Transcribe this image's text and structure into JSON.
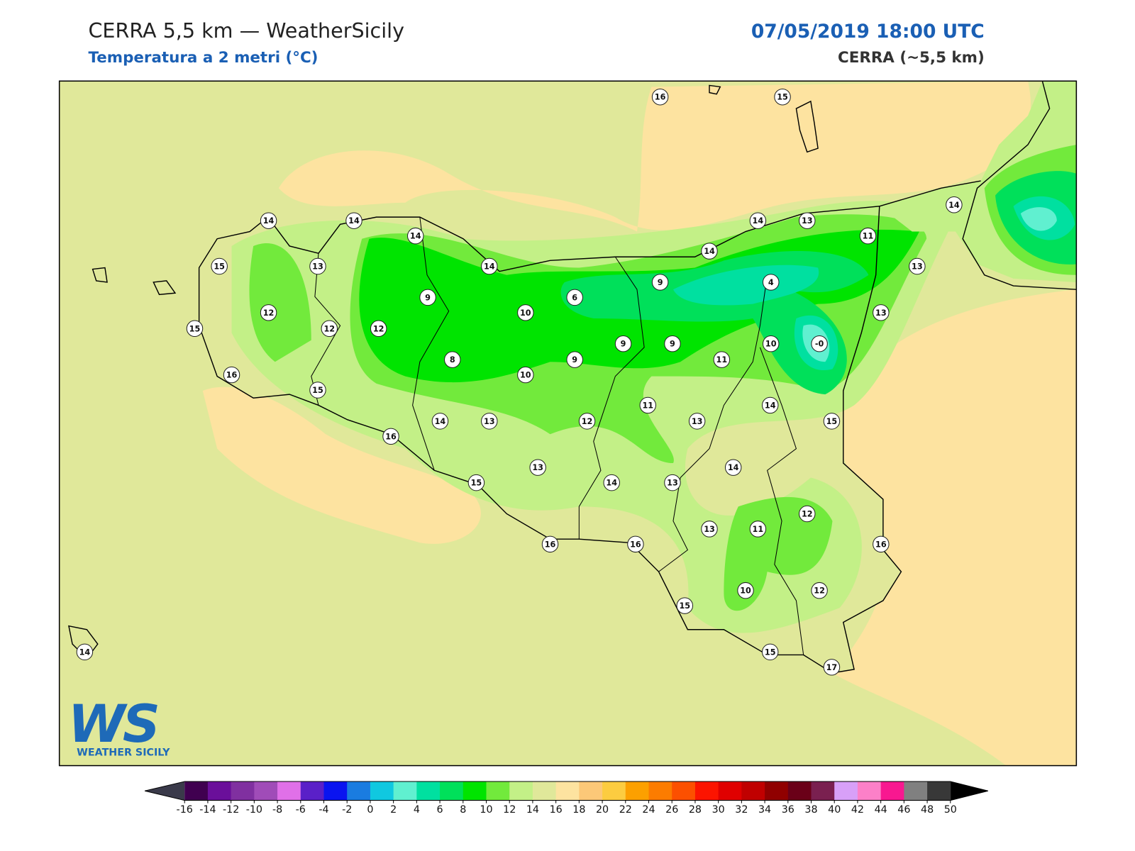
{
  "header": {
    "title": "CERRA 5,5 km — WeatherSicily",
    "subtitle": "Temperatura a 2 metri (°C)",
    "datetime": "07/05/2019 18:00 UTC",
    "model": "CERRA (~5,5 km)"
  },
  "stations": [
    16,
    15,
    14,
    14,
    14,
    15,
    13,
    14,
    14,
    13,
    11,
    14,
    13,
    14,
    9,
    4,
    6,
    9,
    12,
    10,
    13,
    15,
    12,
    12,
    9,
    9,
    10,
    "-0",
    8,
    9,
    11,
    16,
    10,
    15,
    14,
    11,
    14,
    13,
    12,
    13,
    15,
    16,
    13,
    14,
    15,
    14,
    13,
    12,
    13,
    11,
    16,
    16,
    16,
    10,
    12,
    15,
    15,
    17,
    14
  ],
  "logo": {
    "mark": "WS",
    "text": "WEATHER SICILY"
  },
  "colorbar": {
    "ticks": [
      -16,
      -14,
      -12,
      -10,
      -8,
      -6,
      -4,
      -2,
      0,
      2,
      4,
      6,
      8,
      10,
      12,
      14,
      16,
      18,
      20,
      22,
      24,
      26,
      28,
      30,
      32,
      34,
      36,
      38,
      40,
      42,
      44,
      46,
      48,
      50
    ],
    "colors": [
      "#400050",
      "#6a0f9a",
      "#8030a0",
      "#a04cb8",
      "#e070e8",
      "#5a20c8",
      "#0a14f0",
      "#1a7ce0",
      "#10c8e0",
      "#60f0d0",
      "#00e0a0",
      "#00e05a",
      "#00e400",
      "#72ea3c",
      "#c3f087",
      "#e0e89a",
      "#fde3a0",
      "#fcc878",
      "#fccc40",
      "#fca000",
      "#fc7c00",
      "#fc5000",
      "#fc1400",
      "#e00000",
      "#c00000",
      "#900000",
      "#6a0018",
      "#7a2050",
      "#d8a0f8",
      "#fc80c8",
      "#f81890",
      "#808080",
      "#383838"
    ],
    "under_color": "#3a3a4a",
    "over_color": "#000000"
  }
}
